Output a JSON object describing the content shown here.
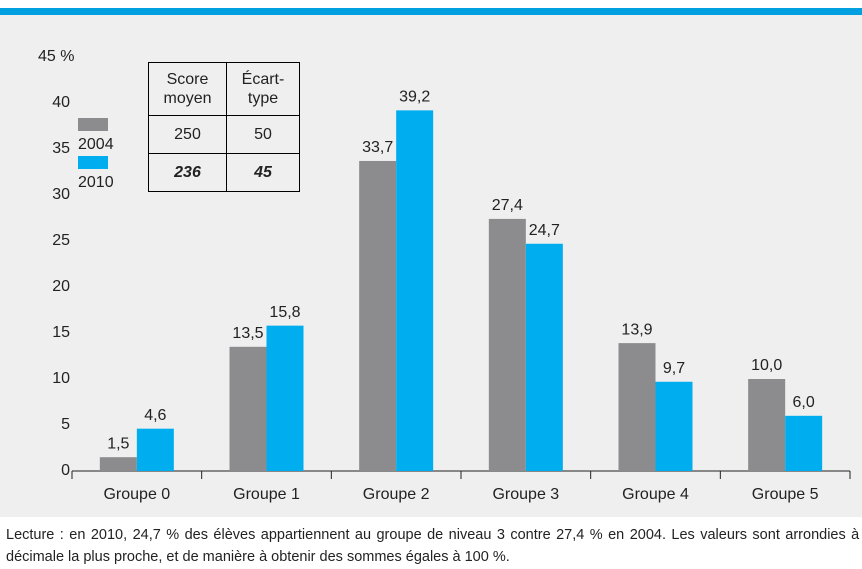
{
  "chart_data": {
    "type": "bar",
    "categories": [
      "Groupe 0",
      "Groupe 1",
      "Groupe 2",
      "Groupe 3",
      "Groupe 4",
      "Groupe 5"
    ],
    "series": [
      {
        "name": "2004",
        "color": "#8c8c8e",
        "values": [
          1.5,
          13.5,
          33.7,
          27.4,
          13.9,
          10.0
        ],
        "value_labels": [
          "1,5",
          "13,5",
          "33,7",
          "27,4",
          "13,9",
          "10,0"
        ]
      },
      {
        "name": "2010",
        "color": "#00aeef",
        "values": [
          4.6,
          15.8,
          39.2,
          24.7,
          9.7,
          6.0
        ],
        "value_labels": [
          "4,6",
          "15,8",
          "39,2",
          "24,7",
          "9,7",
          "6,0"
        ]
      }
    ],
    "ylim": [
      0,
      45
    ],
    "yticks": [
      0,
      5,
      10,
      15,
      20,
      25,
      30,
      35,
      40,
      {
        "value": 45,
        "label": "45 %"
      }
    ],
    "table": {
      "headers": [
        "Score moyen",
        "Écart-type"
      ],
      "rows": [
        [
          250,
          50
        ],
        [
          236,
          45
        ]
      ]
    },
    "note": "Lecture : en 2010, 24,7 % des élèves appartiennent au groupe de niveau 3 contre 27,4 % en 2004. Les valeurs sont arrondies à la décimale la plus proche, et de manière à obtenir des sommes égales à 100 %."
  }
}
